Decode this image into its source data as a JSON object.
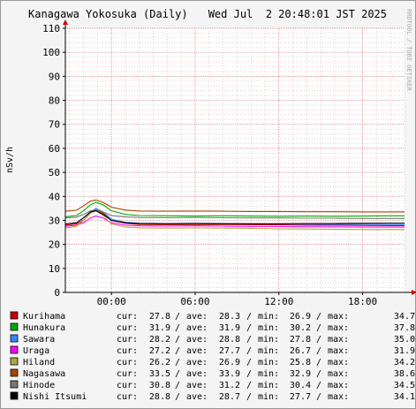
{
  "chart_data": {
    "type": "line",
    "title": "Kanagawa Yokosuka (Daily)",
    "timestamp": "Wed Jul  2 20:48:01 JST 2025",
    "watermark": "RRDTOOL / TOBI OETIKER",
    "ylabel": "nSv/h",
    "ylim": [
      0,
      110
    ],
    "yticks": [
      0,
      10,
      20,
      30,
      40,
      50,
      60,
      70,
      80,
      90,
      100,
      110
    ],
    "ytick_labels": [
      "0",
      "10",
      "20",
      "30",
      "40",
      "50",
      "60",
      "70",
      "80",
      "90",
      "100",
      "110"
    ],
    "xlim": [
      -3.3,
      21.0
    ],
    "xticks": [
      0,
      6,
      12,
      18
    ],
    "xtick_labels": [
      "00:00",
      "06:00",
      "12:00",
      "18:00"
    ],
    "grid": true,
    "legend_position": "bottom",
    "series": [
      {
        "name": "Kurihama",
        "color": "#cc0000",
        "cur": "27.8",
        "ave": "28.3",
        "min": "26.9",
        "max": "34.7",
        "points": [
          [
            -3.3,
            28.0
          ],
          [
            -2.5,
            28.5
          ],
          [
            -2.0,
            30.0
          ],
          [
            -1.5,
            33.0
          ],
          [
            -1.1,
            34.5
          ],
          [
            -0.6,
            33.0
          ],
          [
            0,
            30.0
          ],
          [
            1,
            28.8
          ],
          [
            2,
            28.3
          ],
          [
            4,
            28.2
          ],
          [
            6,
            28.2
          ],
          [
            8,
            28.3
          ],
          [
            10,
            28.2
          ],
          [
            12,
            28.1
          ],
          [
            14,
            28.0
          ],
          [
            16,
            28.0
          ],
          [
            18,
            27.9
          ],
          [
            20,
            27.8
          ],
          [
            21,
            27.8
          ]
        ]
      },
      {
        "name": "Hunakura",
        "color": "#00aa00",
        "cur": "31.9",
        "ave": "31.9",
        "min": "30.2",
        "max": "37.8",
        "points": [
          [
            -3.3,
            31.5
          ],
          [
            -2.5,
            32.0
          ],
          [
            -2.0,
            34.0
          ],
          [
            -1.5,
            36.5
          ],
          [
            -1.1,
            37.5
          ],
          [
            -0.6,
            36.5
          ],
          [
            0,
            34.0
          ],
          [
            1,
            32.5
          ],
          [
            2,
            32.0
          ],
          [
            4,
            31.9
          ],
          [
            6,
            31.8
          ],
          [
            8,
            31.9
          ],
          [
            10,
            31.8
          ],
          [
            12,
            31.7
          ],
          [
            14,
            31.8
          ],
          [
            16,
            31.7
          ],
          [
            18,
            31.8
          ],
          [
            20,
            31.9
          ],
          [
            21,
            31.9
          ]
        ]
      },
      {
        "name": "Sawara",
        "color": "#3388ff",
        "cur": "28.2",
        "ave": "28.8",
        "min": "27.8",
        "max": "35.0",
        "points": [
          [
            -3.3,
            28.5
          ],
          [
            -2.5,
            29.0
          ],
          [
            -2.0,
            31.0
          ],
          [
            -1.5,
            33.5
          ],
          [
            -1.1,
            35.0
          ],
          [
            -0.6,
            33.5
          ],
          [
            0,
            30.5
          ],
          [
            1,
            29.2
          ],
          [
            2,
            28.8
          ],
          [
            4,
            28.7
          ],
          [
            6,
            28.8
          ],
          [
            8,
            28.7
          ],
          [
            10,
            28.6
          ],
          [
            12,
            28.5
          ],
          [
            14,
            28.4
          ],
          [
            16,
            28.3
          ],
          [
            18,
            28.3
          ],
          [
            20,
            28.2
          ],
          [
            21,
            28.2
          ]
        ]
      },
      {
        "name": "Uraga",
        "color": "#ff00ff",
        "cur": "27.2",
        "ave": "27.7",
        "min": "26.7",
        "max": "31.9",
        "points": [
          [
            -3.3,
            27.5
          ],
          [
            -2.5,
            28.0
          ],
          [
            -2.0,
            29.0
          ],
          [
            -1.5,
            31.0
          ],
          [
            -1.1,
            31.8
          ],
          [
            -0.6,
            31.0
          ],
          [
            0,
            29.0
          ],
          [
            1,
            28.0
          ],
          [
            2,
            27.7
          ],
          [
            4,
            27.6
          ],
          [
            6,
            27.7
          ],
          [
            8,
            27.6
          ],
          [
            10,
            27.5
          ],
          [
            12,
            27.4
          ],
          [
            14,
            27.3
          ],
          [
            16,
            27.3
          ],
          [
            18,
            27.2
          ],
          [
            20,
            27.2
          ],
          [
            21,
            27.2
          ]
        ]
      },
      {
        "name": "Hiland",
        "color": "#aaaa44",
        "cur": "26.2",
        "ave": "26.9",
        "min": "25.8",
        "max": "34.2",
        "points": [
          [
            -3.3,
            26.8
          ],
          [
            -2.5,
            27.5
          ],
          [
            -2.0,
            30.0
          ],
          [
            -1.5,
            33.0
          ],
          [
            -1.1,
            34.0
          ],
          [
            -0.6,
            32.0
          ],
          [
            0,
            28.5
          ],
          [
            1,
            27.2
          ],
          [
            2,
            26.9
          ],
          [
            4,
            26.8
          ],
          [
            6,
            26.9
          ],
          [
            8,
            26.8
          ],
          [
            10,
            26.7
          ],
          [
            12,
            26.5
          ],
          [
            14,
            26.4
          ],
          [
            16,
            26.3
          ],
          [
            18,
            26.2
          ],
          [
            20,
            26.2
          ],
          [
            21,
            26.2
          ]
        ]
      },
      {
        "name": "Nagasawa",
        "color": "#aa4400",
        "cur": "33.5",
        "ave": "33.9",
        "min": "32.9",
        "max": "38.6",
        "points": [
          [
            -3.3,
            33.8
          ],
          [
            -2.5,
            34.2
          ],
          [
            -2.0,
            36.0
          ],
          [
            -1.5,
            38.0
          ],
          [
            -1.1,
            38.5
          ],
          [
            -0.6,
            37.5
          ],
          [
            0,
            35.5
          ],
          [
            1,
            34.3
          ],
          [
            2,
            33.9
          ],
          [
            4,
            33.8
          ],
          [
            6,
            33.9
          ],
          [
            8,
            33.8
          ],
          [
            10,
            33.7
          ],
          [
            12,
            33.7
          ],
          [
            14,
            33.6
          ],
          [
            16,
            33.6
          ],
          [
            18,
            33.5
          ],
          [
            20,
            33.5
          ],
          [
            21,
            33.5
          ]
        ]
      },
      {
        "name": "Hinode",
        "color": "#777777",
        "cur": "30.8",
        "ave": "31.2",
        "min": "30.4",
        "max": "34.5",
        "points": [
          [
            -3.3,
            31.0
          ],
          [
            -2.5,
            31.3
          ],
          [
            -2.0,
            32.5
          ],
          [
            -1.5,
            34.0
          ],
          [
            -1.1,
            34.4
          ],
          [
            -0.6,
            33.5
          ],
          [
            0,
            32.0
          ],
          [
            1,
            31.4
          ],
          [
            2,
            31.2
          ],
          [
            4,
            31.1
          ],
          [
            6,
            31.2
          ],
          [
            8,
            31.1
          ],
          [
            10,
            31.0
          ],
          [
            12,
            31.0
          ],
          [
            14,
            30.9
          ],
          [
            16,
            30.9
          ],
          [
            18,
            30.8
          ],
          [
            20,
            30.8
          ],
          [
            21,
            30.8
          ]
        ]
      },
      {
        "name": "Nishi Itsumi",
        "color": "#000000",
        "cur": "28.8",
        "ave": "28.7",
        "min": "27.7",
        "max": "34.1",
        "points": [
          [
            -3.3,
            28.5
          ],
          [
            -2.5,
            29.0
          ],
          [
            -2.0,
            31.0
          ],
          [
            -1.5,
            33.5
          ],
          [
            -1.1,
            34.0
          ],
          [
            -0.6,
            32.5
          ],
          [
            0,
            30.0
          ],
          [
            1,
            29.0
          ],
          [
            2,
            28.7
          ],
          [
            4,
            28.6
          ],
          [
            6,
            28.7
          ],
          [
            8,
            28.6
          ],
          [
            10,
            28.6
          ],
          [
            12,
            28.6
          ],
          [
            14,
            28.7
          ],
          [
            16,
            28.7
          ],
          [
            18,
            28.8
          ],
          [
            20,
            28.8
          ],
          [
            21,
            28.8
          ]
        ]
      }
    ],
    "legend_labels": {
      "cur": "cur:",
      "ave": "ave:",
      "min": "min:",
      "max": "max:",
      "sep": "/"
    }
  }
}
